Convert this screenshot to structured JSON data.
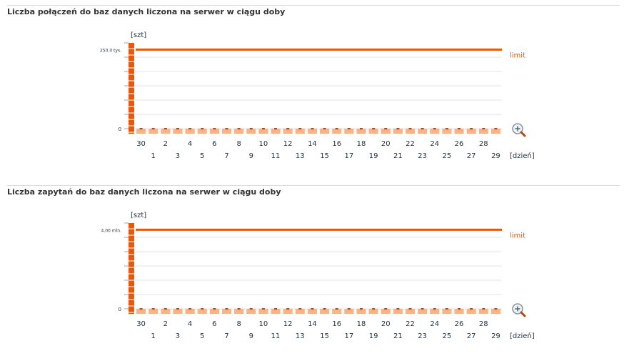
{
  "colors": {
    "accent": "#e8580c",
    "bar": "#f7b48a",
    "bar_cap": "#c0440a",
    "grid": "#e3e3e3",
    "text": "#1f2f3f",
    "title": "#333333"
  },
  "chart_data": [
    {
      "type": "bar",
      "title": "Liczba połączeń do baz danych liczona na serwer w ciągu doby",
      "ylabel": "[szt]",
      "xlabel": "[dzień]",
      "ylim": [
        0,
        270000
      ],
      "yticks": [
        {
          "value": 0,
          "label": "0"
        },
        {
          "value": 250000,
          "label": "250.0 tys."
        }
      ],
      "limit": {
        "value": 250000,
        "label": "limit"
      },
      "categories": [
        "30",
        "1",
        "2",
        "3",
        "4",
        "5",
        "6",
        "7",
        "8",
        "9",
        "10",
        "11",
        "12",
        "13",
        "14",
        "15",
        "16",
        "17",
        "18",
        "19",
        "20",
        "21",
        "22",
        "23",
        "24",
        "25",
        "26",
        "27",
        "28",
        "29"
      ],
      "values": [
        2500,
        2600,
        2400,
        2500,
        2700,
        2600,
        2500,
        2400,
        2600,
        2500,
        2500,
        2400,
        2600,
        2500,
        2500,
        2400,
        2600,
        2500,
        2700,
        2600,
        2500,
        2400,
        2600,
        2500,
        2700,
        2600,
        2500,
        2400,
        2600,
        2500
      ]
    },
    {
      "type": "bar",
      "title": "Liczba zapytań do baz danych liczona na serwer w ciągu doby",
      "ylabel": "[szt]",
      "xlabel": "[dzień]",
      "ylim": [
        0,
        4320000
      ],
      "yticks": [
        {
          "value": 0,
          "label": "0"
        },
        {
          "value": 4000000,
          "label": "4.00 mln."
        }
      ],
      "limit": {
        "value": 4000000,
        "label": "limit"
      },
      "categories": [
        "30",
        "1",
        "2",
        "3",
        "4",
        "5",
        "6",
        "7",
        "8",
        "9",
        "10",
        "11",
        "12",
        "13",
        "14",
        "15",
        "16",
        "17",
        "18",
        "19",
        "20",
        "21",
        "22",
        "23",
        "24",
        "25",
        "26",
        "27",
        "28",
        "29"
      ],
      "values": [
        40000,
        42000,
        38000,
        40000,
        43000,
        41000,
        40000,
        38000,
        42000,
        40000,
        40000,
        38000,
        42000,
        40000,
        40000,
        38000,
        42000,
        40000,
        43000,
        41000,
        40000,
        38000,
        42000,
        40000,
        43000,
        41000,
        40000,
        38000,
        42000,
        40000
      ]
    }
  ]
}
